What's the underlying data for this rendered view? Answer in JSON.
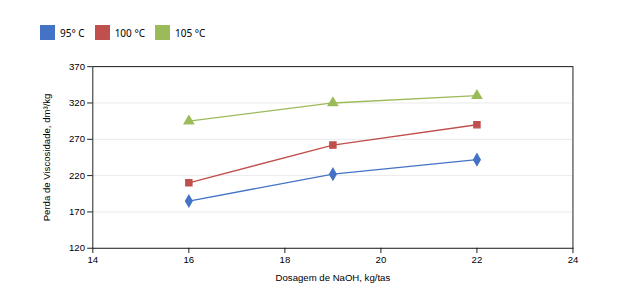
{
  "chart_data": {
    "type": "line",
    "xlabel": "Dosagem de NaOH, kg/tas",
    "ylabel": "Perda de Viscosidade, dm³/kg",
    "x": [
      16,
      19,
      22
    ],
    "series": [
      {
        "name": "95° C",
        "color": "#4472C4",
        "marker": "diamond",
        "values": [
          185,
          222,
          242
        ]
      },
      {
        "name": "100 °C",
        "color": "#C0504D",
        "marker": "square",
        "values": [
          210,
          262,
          290
        ]
      },
      {
        "name": "105 °C",
        "color": "#9BBB59",
        "marker": "triangle",
        "values": [
          295,
          320,
          330
        ]
      }
    ],
    "xlim": [
      14,
      24
    ],
    "ylim": [
      120,
      370
    ],
    "xticks": [
      14,
      16,
      18,
      20,
      22,
      24
    ],
    "yticks": [
      120,
      170,
      220,
      270,
      320,
      370
    ],
    "grid": true,
    "legend": "top"
  }
}
